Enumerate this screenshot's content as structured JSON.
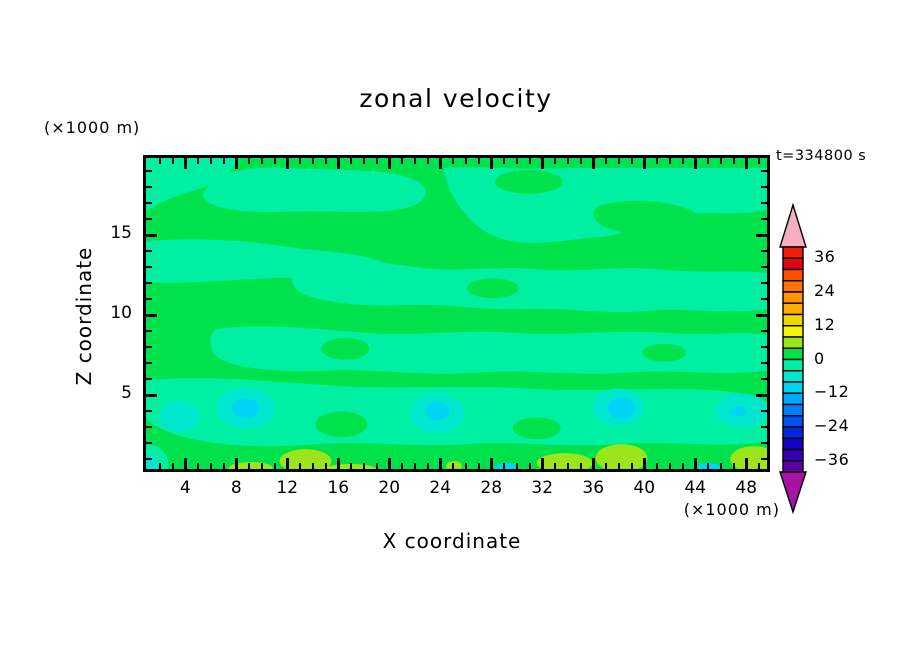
{
  "title": "zonal velocity",
  "timestamp": "t=334800 s",
  "axes": {
    "x": {
      "label": "X coordinate",
      "unit": "(×1000 m)",
      "major_ticks": [
        4,
        8,
        12,
        16,
        20,
        24,
        28,
        32,
        36,
        40,
        44,
        48
      ],
      "minor_tick_interval": 1
    },
    "y": {
      "label": "Z coordinate",
      "unit": "(×1000 m)",
      "major_ticks": [
        5,
        10,
        15
      ],
      "minor_tick_interval": 1
    }
  },
  "colorbar": {
    "tick_labels": [
      "36",
      "24",
      "12",
      "0",
      "−12",
      "−24",
      "−36"
    ],
    "tick_values": [
      36,
      24,
      12,
      0,
      -12,
      -24,
      -36
    ],
    "level_min": -40,
    "level_max": 40,
    "interval": 4,
    "colors_top_to_bottom": [
      "#F01C0C",
      "#DE0616",
      "#FF4E00",
      "#FF7300",
      "#FF9300",
      "#FFAF00",
      "#EFD800",
      "#F4F408",
      "#9CE41C",
      "#00E24C",
      "#00EFA2",
      "#00E7CE",
      "#00D4F5",
      "#00AAFF",
      "#007FFF",
      "#0050F5",
      "#0028DF",
      "#1500C6",
      "#3400B2",
      "#5C00A2"
    ],
    "arrow_top_color": "#F5AFC0",
    "arrow_bottom_color": "#A613A6",
    "outline_color": "#000000"
  },
  "palette": {
    "green": "#00E24C",
    "spring": "#00EFA2",
    "turquoise": "#00E7CE",
    "cyan": "#00D4F5",
    "chartreuse": "#9CE41C"
  },
  "chart_data": {
    "type": "heatmap",
    "subtype": "filled-contour",
    "title": "zonal velocity",
    "xlabel": "X coordinate",
    "ylabel": "Z coordinate",
    "x_unit": "×1000 m",
    "y_unit": "×1000 m",
    "x_range": [
      0.7,
      49.9
    ],
    "z_range": [
      0,
      20
    ],
    "x_ticks": [
      4,
      8,
      12,
      16,
      20,
      24,
      28,
      32,
      36,
      40,
      44,
      48
    ],
    "z_ticks": [
      5,
      10,
      15
    ],
    "time_annotation": "t=334800 s",
    "contour_interval": 4,
    "colorbar_range": [
      -40,
      40
    ],
    "grid": false,
    "legend_position": "right-colorbar-with-end-arrows",
    "field_summary": "Zonal velocity field dominated by values in the 0 to +4 band (green) interleaved with wavy horizontal bands of -4 to 0 (spring green); weak minima of -8 to -12 (turquoise/cyan ovals) near the bottom boundary and weak maxima of +4 to +8 (chartreuse spots) along the lowest level.",
    "features": [
      {
        "level_range": [
          0,
          4
        ],
        "color": "#00E24C",
        "description": "background green covering most of the domain"
      },
      {
        "level_range": [
          -4,
          0
        ],
        "color": "#00EFA2",
        "description": "elongated horizontal bands across full width at z≈17-20 (right two-thirds), z≈10-12, z≈6-9, and z≈2-5"
      },
      {
        "level_range": [
          -8,
          -4
        ],
        "color": "#00E7CE",
        "description": "ovals at (x≈5, z≈3), (x≈9, z≈3.5), (x≈24, z≈3.5), (x≈38, z≈3.5), (x≈48, z≈3.5) and bottom-left corner"
      },
      {
        "level_range": [
          -12,
          -8
        ],
        "color": "#00D4F5",
        "description": "small cyan cores inside the ovals at x≈9, 24, 38, 47 near z≈3-4"
      },
      {
        "level_range": [
          4,
          8
        ],
        "color": "#9CE41C",
        "description": "chartreuse maxima hugging the bottom boundary near x≈12-14, 25, 33-35, 37-39, 48-49"
      }
    ]
  },
  "layout_hints": {
    "frame_color": "#000000",
    "background": "#ffffff"
  }
}
